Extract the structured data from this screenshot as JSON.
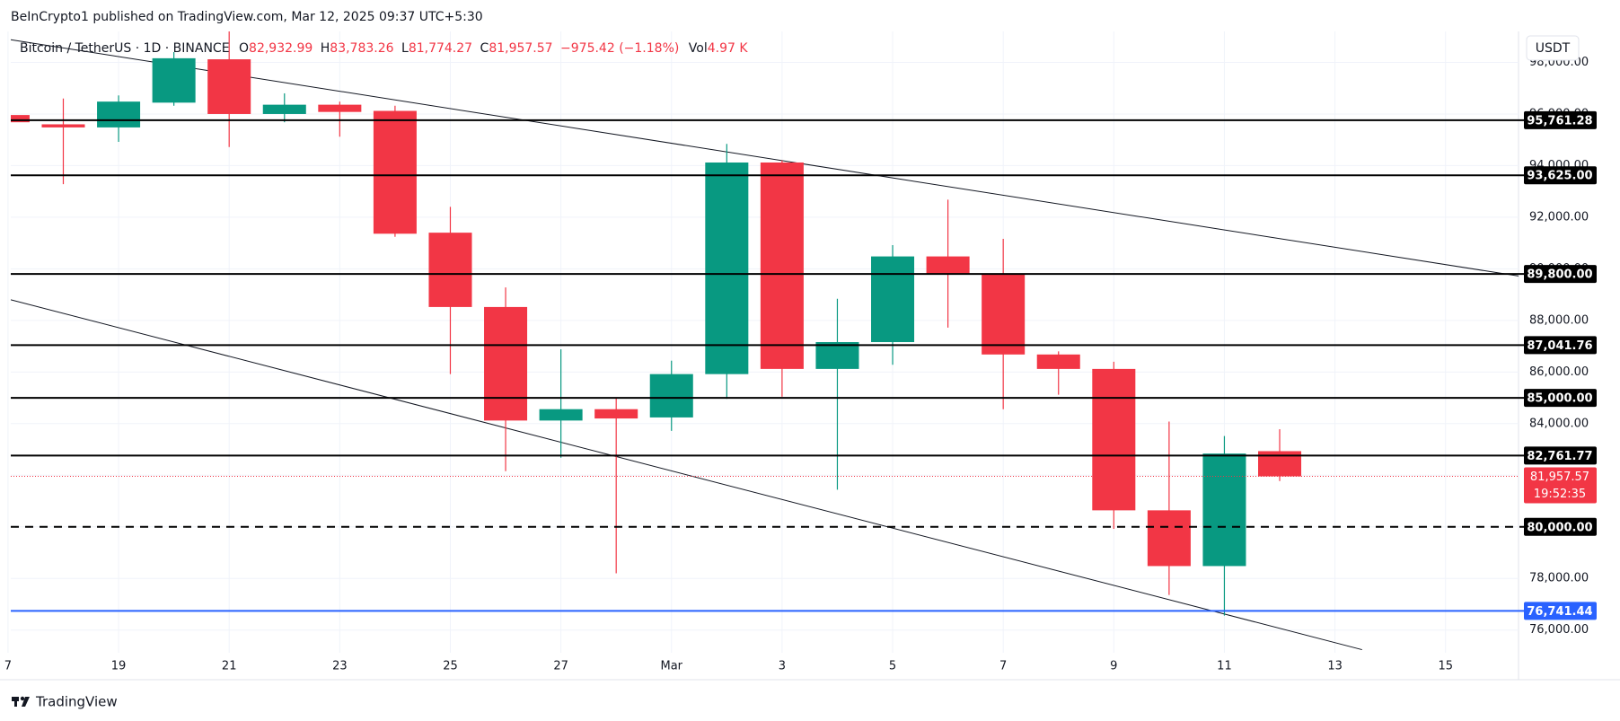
{
  "header": {
    "publisher": "BeInCrypto1 published on TradingView.com, Mar 12, 2025 09:37 UTC+5:30",
    "symbol": "Bitcoin / TetherUS · 1D · BINANCE",
    "o_label": "O",
    "o_value": "82,932.99",
    "h_label": "H",
    "h_value": "83,783.26",
    "l_label": "L",
    "l_value": "81,774.27",
    "c_label": "C",
    "c_value": "81,957.57",
    "change": "−975.42 (−1.18%)",
    "vol_label": "Vol",
    "vol_value": "4.97 K",
    "currency": "USDT"
  },
  "footer": {
    "brand": "TradingView"
  },
  "chart_data": {
    "type": "candlestick",
    "up_color": "#089981",
    "down_color": "#f23645",
    "xlim": [
      0.05,
      27.32
    ],
    "ylim": [
      75120,
      99200
    ],
    "xticks": [
      {
        "value": 0,
        "label": "7"
      },
      {
        "value": 2,
        "label": "19"
      },
      {
        "value": 4,
        "label": "21"
      },
      {
        "value": 6,
        "label": "23"
      },
      {
        "value": 8,
        "label": "25"
      },
      {
        "value": 10,
        "label": "27"
      },
      {
        "value": 12,
        "label": "Mar"
      },
      {
        "value": 14,
        "label": "3"
      },
      {
        "value": 16,
        "label": "5"
      },
      {
        "value": 18,
        "label": "7"
      },
      {
        "value": 20,
        "label": "9"
      },
      {
        "value": 22,
        "label": "11"
      },
      {
        "value": 24,
        "label": "13"
      },
      {
        "value": 26,
        "label": "15"
      }
    ],
    "yticks": [
      {
        "value": 76000,
        "label": "76,000.00"
      },
      {
        "value": 78000,
        "label": "78,000.00"
      },
      {
        "value": 80000,
        "label": "80,000.00"
      },
      {
        "value": 82000,
        "label": "82,000.00"
      },
      {
        "value": 84000,
        "label": "84,000.00"
      },
      {
        "value": 86000,
        "label": "86,000.00"
      },
      {
        "value": 88000,
        "label": "88,000.00"
      },
      {
        "value": 90000,
        "label": "90,000.00"
      },
      {
        "value": 92000,
        "label": "92,000.00"
      },
      {
        "value": 94000,
        "label": "94,000.00"
      },
      {
        "value": 96000,
        "label": "96,000.00"
      },
      {
        "value": 98000,
        "label": "98,000.00"
      }
    ],
    "grid": true,
    "candles": [
      {
        "x": 0,
        "open": 95960,
        "high": 96000,
        "low": 95680,
        "close": 95680
      },
      {
        "x": 1,
        "open": 95600,
        "high": 96600,
        "low": 93280,
        "close": 95480
      },
      {
        "x": 2,
        "open": 95480,
        "high": 96720,
        "low": 94920,
        "close": 96480
      },
      {
        "x": 3,
        "open": 96440,
        "high": 98400,
        "low": 96320,
        "close": 98160
      },
      {
        "x": 4,
        "open": 98120,
        "high": 99280,
        "low": 94720,
        "close": 96000
      },
      {
        "x": 5,
        "open": 96000,
        "high": 96800,
        "low": 95680,
        "close": 96360
      },
      {
        "x": 6,
        "open": 96360,
        "high": 96480,
        "low": 95120,
        "close": 96080
      },
      {
        "x": 7,
        "open": 96120,
        "high": 96320,
        "low": 91240,
        "close": 91360
      },
      {
        "x": 8,
        "open": 91400,
        "high": 92400,
        "low": 85920,
        "close": 88520
      },
      {
        "x": 9,
        "open": 88520,
        "high": 89280,
        "low": 82160,
        "close": 84120
      },
      {
        "x": 10,
        "open": 84120,
        "high": 86880,
        "low": 82680,
        "close": 84560
      },
      {
        "x": 11,
        "open": 84560,
        "high": 85000,
        "low": 78200,
        "close": 84200
      },
      {
        "x": 12,
        "open": 84240,
        "high": 86440,
        "low": 83720,
        "close": 85920
      },
      {
        "x": 13,
        "open": 85920,
        "high": 94840,
        "low": 84960,
        "close": 94120
      },
      {
        "x": 14,
        "open": 94120,
        "high": 94200,
        "low": 85040,
        "close": 86120
      },
      {
        "x": 15,
        "open": 86120,
        "high": 88840,
        "low": 81440,
        "close": 87160
      },
      {
        "x": 16,
        "open": 87160,
        "high": 90920,
        "low": 86280,
        "close": 90480
      },
      {
        "x": 17,
        "open": 90480,
        "high": 92680,
        "low": 87720,
        "close": 89800
      },
      {
        "x": 18,
        "open": 89800,
        "high": 91160,
        "low": 84560,
        "close": 86680
      },
      {
        "x": 19,
        "open": 86680,
        "high": 86800,
        "low": 85120,
        "close": 86120
      },
      {
        "x": 20,
        "open": 86120,
        "high": 86400,
        "low": 79920,
        "close": 80640
      },
      {
        "x": 21,
        "open": 80640,
        "high": 84080,
        "low": 77360,
        "close": 78480
      },
      {
        "x": 22,
        "open": 78480,
        "high": 83520,
        "low": 76560,
        "close": 82840
      },
      {
        "x": 23,
        "open": 82932.99,
        "high": 83783.26,
        "low": 81774.27,
        "close": 81957.57
      }
    ],
    "levels": [
      {
        "value": 95761.28,
        "label": "95,761.28",
        "color": "#000000",
        "dashed": false
      },
      {
        "value": 93625,
        "label": "93,625.00",
        "color": "#000000",
        "dashed": false
      },
      {
        "value": 89800,
        "label": "89,800.00",
        "color": "#000000",
        "dashed": false
      },
      {
        "value": 87041.76,
        "label": "87,041.76",
        "color": "#000000",
        "dashed": false
      },
      {
        "value": 85000,
        "label": "85,000.00",
        "color": "#000000",
        "dashed": false
      },
      {
        "value": 82761.77,
        "label": "82,761.77",
        "color": "#000000",
        "dashed": false
      },
      {
        "value": 80000,
        "label": "80,000.00",
        "color": "#000000",
        "dashed": true
      },
      {
        "value": 76741.44,
        "label": "76,741.44",
        "color": "#2962ff",
        "dashed": false
      }
    ],
    "last_price": {
      "value": 81957.57,
      "label": "81,957.57",
      "countdown": "19:52:35",
      "color": "#f23645"
    },
    "trendlines": [
      {
        "x": [
          0.05,
          27.32
        ],
        "y": [
          98880,
          89720
        ]
      },
      {
        "x": [
          0.05,
          24.49
        ],
        "y": [
          88800,
          75240
        ]
      }
    ]
  }
}
